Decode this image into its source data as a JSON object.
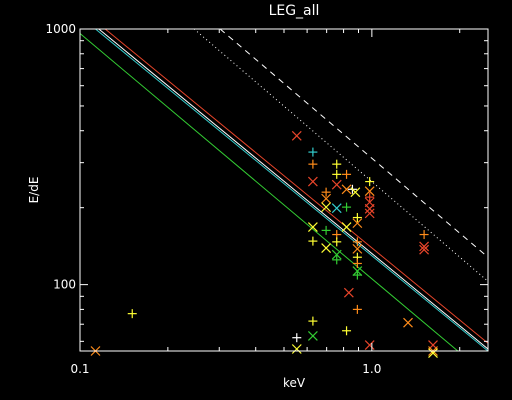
{
  "chart_data": {
    "type": "scatter",
    "title": "LEG_all",
    "xlabel": "keV",
    "ylabel": "E/dE",
    "xscale": "log",
    "yscale": "log",
    "xlim": [
      0.1,
      2.5
    ],
    "ylim": [
      55,
      1000
    ],
    "grid": false,
    "x_ticks": [
      {
        "v": 0.1,
        "label": "0.1"
      },
      {
        "v": 1.0,
        "label": "1.0"
      }
    ],
    "y_ticks": [
      {
        "v": 100,
        "label": "100"
      },
      {
        "v": 1000,
        "label": "1000"
      }
    ],
    "colors": {
      "background": "#000000",
      "axes": "#ffffff",
      "red": "#e8452a",
      "orange": "#ff8c1a",
      "yellow": "#ffff33",
      "green": "#33cc33",
      "cyan": "#33cccc",
      "white": "#ffffff"
    },
    "lines": [
      {
        "style": "dashed",
        "color": "white",
        "points": [
          [
            0.302,
            1000
          ],
          [
            2.5,
            128
          ]
        ]
      },
      {
        "style": "dotted",
        "color": "white",
        "points": [
          [
            0.246,
            1000
          ],
          [
            2.5,
            103
          ]
        ]
      },
      {
        "style": "solid",
        "color": "red",
        "points": [
          [
            0.122,
            1000
          ],
          [
            2.5,
            59
          ]
        ]
      },
      {
        "style": "solid",
        "color": "white",
        "points": [
          [
            0.116,
            1000
          ],
          [
            2.5,
            56
          ]
        ]
      },
      {
        "style": "solid",
        "color": "cyan",
        "points": [
          [
            0.113,
            1000
          ],
          [
            2.5,
            55
          ]
        ]
      },
      {
        "style": "solid",
        "color": "green",
        "points": [
          [
            0.1,
            960
          ],
          [
            1.97,
            55
          ]
        ]
      }
    ],
    "markers": [
      {
        "x": 0.113,
        "y": 55,
        "m": "x",
        "c": "orange"
      },
      {
        "x": 0.151,
        "y": 77,
        "m": "+",
        "c": "yellow"
      },
      {
        "x": 0.553,
        "y": 62,
        "m": "+",
        "c": "white"
      },
      {
        "x": 0.553,
        "y": 56,
        "m": "x",
        "c": "yellow"
      },
      {
        "x": 0.628,
        "y": 72,
        "m": "+",
        "c": "yellow"
      },
      {
        "x": 0.628,
        "y": 63,
        "m": "x",
        "c": "green"
      },
      {
        "x": 0.819,
        "y": 66,
        "m": "+",
        "c": "yellow"
      },
      {
        "x": 0.983,
        "y": 58,
        "m": "x",
        "c": "red"
      },
      {
        "x": 0.892,
        "y": 80,
        "m": "+",
        "c": "orange"
      },
      {
        "x": 0.834,
        "y": 93,
        "m": "x",
        "c": "red"
      },
      {
        "x": 1.33,
        "y": 71,
        "m": "x",
        "c": "orange"
      },
      {
        "x": 1.62,
        "y": 58,
        "m": "x",
        "c": "red"
      },
      {
        "x": 1.62,
        "y": 55,
        "m": "x",
        "c": "orange"
      },
      {
        "x": 1.62,
        "y": 54,
        "m": "x",
        "c": "yellow"
      },
      {
        "x": 0.553,
        "y": 382,
        "m": "x",
        "c": "red"
      },
      {
        "x": 0.628,
        "y": 330,
        "m": "+",
        "c": "cyan"
      },
      {
        "x": 0.628,
        "y": 296,
        "m": "+",
        "c": "orange"
      },
      {
        "x": 0.628,
        "y": 253,
        "m": "x",
        "c": "red"
      },
      {
        "x": 0.628,
        "y": 168,
        "m": "x",
        "c": "yellow"
      },
      {
        "x": 0.628,
        "y": 148,
        "m": "+",
        "c": "yellow"
      },
      {
        "x": 0.697,
        "y": 230,
        "m": "+",
        "c": "orange"
      },
      {
        "x": 0.697,
        "y": 217,
        "m": "x",
        "c": "orange"
      },
      {
        "x": 0.697,
        "y": 201,
        "m": "x",
        "c": "yellow"
      },
      {
        "x": 0.697,
        "y": 163,
        "m": "+",
        "c": "green"
      },
      {
        "x": 0.697,
        "y": 139,
        "m": "x",
        "c": "yellow"
      },
      {
        "x": 0.758,
        "y": 296,
        "m": "+",
        "c": "yellow"
      },
      {
        "x": 0.758,
        "y": 270,
        "m": "+",
        "c": "yellow"
      },
      {
        "x": 0.758,
        "y": 246,
        "m": "x",
        "c": "red"
      },
      {
        "x": 0.758,
        "y": 199,
        "m": "x",
        "c": "cyan"
      },
      {
        "x": 0.758,
        "y": 157,
        "m": "+",
        "c": "orange"
      },
      {
        "x": 0.758,
        "y": 147,
        "m": "+",
        "c": "yellow"
      },
      {
        "x": 0.758,
        "y": 131,
        "m": "x",
        "c": "green"
      },
      {
        "x": 0.758,
        "y": 125,
        "m": "+",
        "c": "green"
      },
      {
        "x": 0.819,
        "y": 270,
        "m": "+",
        "c": "orange"
      },
      {
        "x": 0.819,
        "y": 236,
        "m": "x",
        "c": "orange"
      },
      {
        "x": 0.819,
        "y": 201,
        "m": "+",
        "c": "green"
      },
      {
        "x": 0.819,
        "y": 168,
        "m": "x",
        "c": "yellow"
      },
      {
        "x": 0.858,
        "y": 236,
        "m": "+",
        "c": "white"
      },
      {
        "x": 0.878,
        "y": 230,
        "m": "x",
        "c": "yellow"
      },
      {
        "x": 0.892,
        "y": 183,
        "m": "+",
        "c": "yellow"
      },
      {
        "x": 0.892,
        "y": 174,
        "m": "x",
        "c": "orange"
      },
      {
        "x": 0.892,
        "y": 147,
        "m": "+",
        "c": "orange"
      },
      {
        "x": 0.892,
        "y": 138,
        "m": "x",
        "c": "orange"
      },
      {
        "x": 0.892,
        "y": 128,
        "m": "+",
        "c": "yellow"
      },
      {
        "x": 0.892,
        "y": 121,
        "m": "+",
        "c": "orange"
      },
      {
        "x": 0.892,
        "y": 113,
        "m": "x",
        "c": "green"
      },
      {
        "x": 0.892,
        "y": 109,
        "m": "+",
        "c": "green"
      },
      {
        "x": 0.983,
        "y": 253,
        "m": "+",
        "c": "yellow"
      },
      {
        "x": 0.983,
        "y": 232,
        "m": "x",
        "c": "orange"
      },
      {
        "x": 0.983,
        "y": 220,
        "m": "+",
        "c": "red"
      },
      {
        "x": 0.983,
        "y": 210,
        "m": "x",
        "c": "red"
      },
      {
        "x": 0.983,
        "y": 198,
        "m": "x",
        "c": "red"
      },
      {
        "x": 0.983,
        "y": 190,
        "m": "x",
        "c": "red"
      },
      {
        "x": 1.51,
        "y": 157,
        "m": "+",
        "c": "orange"
      },
      {
        "x": 1.51,
        "y": 141,
        "m": "x",
        "c": "red"
      },
      {
        "x": 1.51,
        "y": 137,
        "m": "x",
        "c": "red"
      }
    ]
  }
}
